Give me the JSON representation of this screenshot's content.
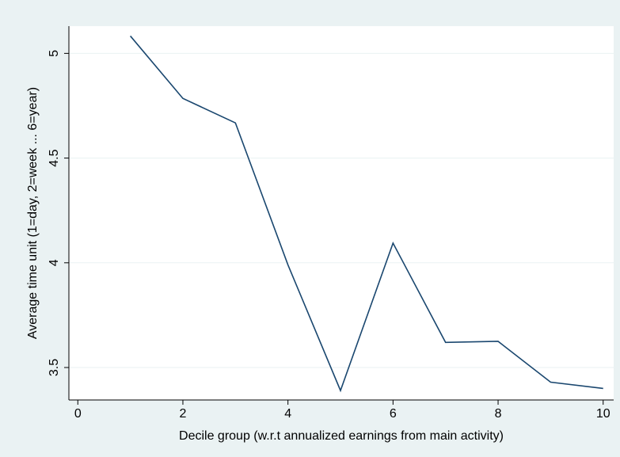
{
  "chart_data": {
    "type": "line",
    "x_label": "Decile group (w.r.t annualized earnings from main activity)",
    "y_label": "Average time unit (1=day, 2=week ... 6=year)",
    "x": [
      1,
      2,
      3,
      4,
      5,
      6,
      7,
      8,
      9,
      10
    ],
    "series": [
      {
        "color": "#1a476f",
        "values": [
          5.083,
          4.785,
          4.668,
          3.99,
          3.39,
          4.094,
          3.62,
          3.625,
          3.43,
          3.4
        ]
      }
    ],
    "xlim": [
      -0.17,
      10.2
    ],
    "xticks": [
      0,
      2,
      4,
      6,
      8,
      10
    ],
    "ylim": [
      3.345,
      5.13
    ],
    "yticks": [
      3.5,
      4,
      4.5,
      5
    ],
    "grid": true
  }
}
